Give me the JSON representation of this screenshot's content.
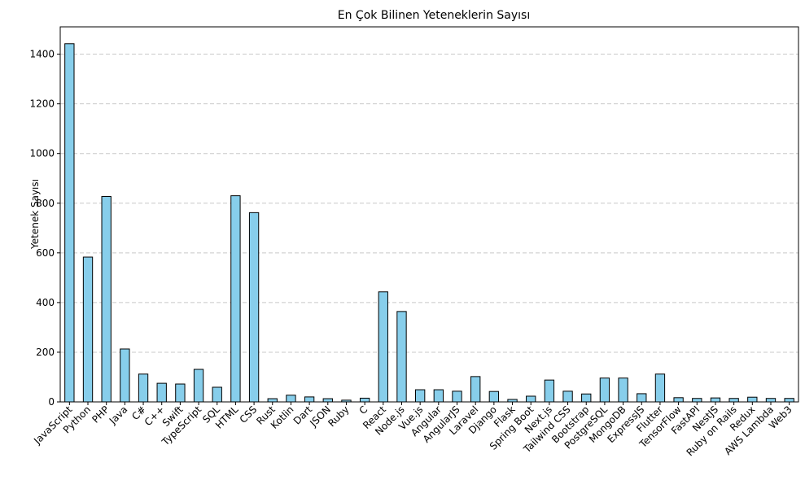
{
  "chart_data": {
    "type": "bar",
    "title": "En Çok Bilinen Yeteneklerin Sayısı",
    "xlabel": "",
    "ylabel": "Yetenek Sayısı",
    "ylim": [
      0,
      1510
    ],
    "yticks": [
      0,
      200,
      400,
      600,
      800,
      1000,
      1200,
      1400
    ],
    "grid": "y-dashed",
    "colors": {
      "bar_fill": "#87ceeb",
      "bar_edge": "#000000",
      "grid": "#c8c8c8"
    },
    "categories": [
      "JavaScript",
      "Python",
      "PHP",
      "Java",
      "C#",
      "C++",
      "Swift",
      "TypeScript",
      "SQL",
      "HTML",
      "CSS",
      "Rust",
      "Kotlin",
      "Dart",
      "JSON",
      "Ruby",
      "C",
      "React",
      "Node.js",
      "Vue.js",
      "Angular",
      "AngularJS",
      "Laravel",
      "Django",
      "Flask",
      "Spring Boot",
      "Next.js",
      "Tailwind CSS",
      "Bootstrap",
      "PostgreSQL",
      "MongoDB",
      "ExpressJS",
      "Flutter",
      "TensorFlow",
      "FastAPI",
      "NestJS",
      "Ruby on Rails",
      "Redux",
      "AWS Lambda",
      "Web3"
    ],
    "values": [
      1442,
      583,
      827,
      213,
      112,
      75,
      72,
      131,
      59,
      830,
      762,
      13,
      27,
      20,
      13,
      7,
      15,
      443,
      364,
      49,
      49,
      43,
      102,
      42,
      10,
      23,
      88,
      43,
      32,
      96,
      96,
      33,
      112,
      17,
      14,
      16,
      14,
      19,
      14,
      14
    ]
  }
}
